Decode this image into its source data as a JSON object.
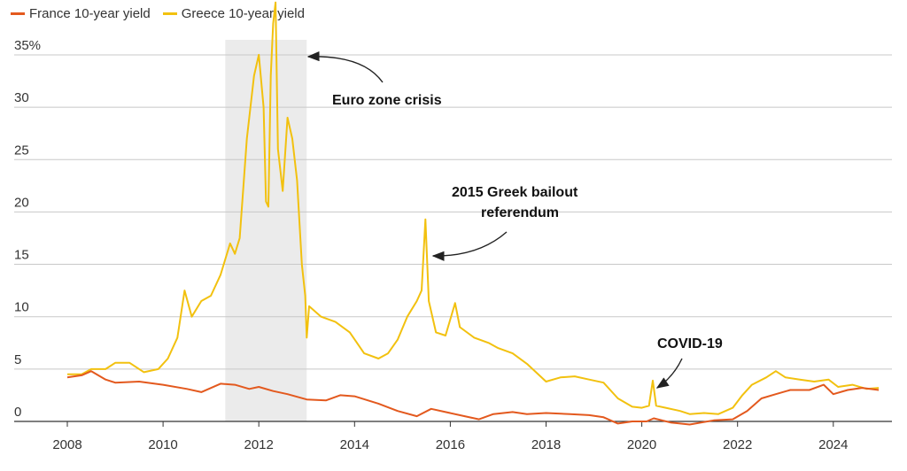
{
  "legend": [
    {
      "label": "France 10-year yield",
      "color": "#e3591e"
    },
    {
      "label": "Greece 10-year yield",
      "color": "#f2c10f"
    }
  ],
  "chart_data": {
    "type": "line",
    "title": "",
    "xlabel": "",
    "ylabel": "",
    "xlim": [
      2008,
      2025
    ],
    "ylim": [
      0,
      40
    ],
    "x_ticks": [
      2008,
      2010,
      2012,
      2014,
      2016,
      2018,
      2020,
      2022,
      2024
    ],
    "y_ticks": [
      {
        "value": 0,
        "label": "0"
      },
      {
        "value": 5,
        "label": "5"
      },
      {
        "value": 10,
        "label": "10"
      },
      {
        "value": 15,
        "label": "15"
      },
      {
        "value": 20,
        "label": "20"
      },
      {
        "value": 25,
        "label": "25"
      },
      {
        "value": 30,
        "label": "30"
      },
      {
        "value": 35,
        "label": "35%"
      }
    ],
    "grid": true,
    "shaded_region": {
      "x0": 2011.3,
      "x1": 2013.0,
      "color": "#ebebeb"
    },
    "series": [
      {
        "name": "Greece 10-year yield",
        "color": "#f2c10f",
        "points": [
          [
            2008.0,
            4.5
          ],
          [
            2008.3,
            4.5
          ],
          [
            2008.5,
            5.0
          ],
          [
            2008.8,
            5.0
          ],
          [
            2009.0,
            5.6
          ],
          [
            2009.3,
            5.6
          ],
          [
            2009.6,
            4.7
          ],
          [
            2009.9,
            5.0
          ],
          [
            2010.1,
            6.0
          ],
          [
            2010.3,
            8.0
          ],
          [
            2010.45,
            12.5
          ],
          [
            2010.6,
            10.0
          ],
          [
            2010.8,
            11.5
          ],
          [
            2011.0,
            12.0
          ],
          [
            2011.2,
            14.0
          ],
          [
            2011.4,
            17.0
          ],
          [
            2011.5,
            16.0
          ],
          [
            2011.6,
            17.5
          ],
          [
            2011.75,
            27.0
          ],
          [
            2011.9,
            33.0
          ],
          [
            2012.0,
            35.0
          ],
          [
            2012.1,
            30.0
          ],
          [
            2012.15,
            21.0
          ],
          [
            2012.2,
            20.5
          ],
          [
            2012.25,
            33.0
          ],
          [
            2012.3,
            38.0
          ],
          [
            2012.35,
            40.0
          ],
          [
            2012.4,
            26.0
          ],
          [
            2012.5,
            22.0
          ],
          [
            2012.6,
            29.0
          ],
          [
            2012.7,
            27.0
          ],
          [
            2012.8,
            23.0
          ],
          [
            2012.9,
            15.0
          ],
          [
            2012.97,
            12.0
          ],
          [
            2013.0,
            8.0
          ],
          [
            2013.05,
            11.0
          ],
          [
            2013.3,
            10.0
          ],
          [
            2013.6,
            9.5
          ],
          [
            2013.9,
            8.5
          ],
          [
            2014.2,
            6.5
          ],
          [
            2014.5,
            6.0
          ],
          [
            2014.7,
            6.5
          ],
          [
            2014.9,
            7.8
          ],
          [
            2015.1,
            10.0
          ],
          [
            2015.3,
            11.5
          ],
          [
            2015.4,
            12.5
          ],
          [
            2015.48,
            19.3
          ],
          [
            2015.55,
            11.5
          ],
          [
            2015.7,
            8.5
          ],
          [
            2015.9,
            8.2
          ],
          [
            2016.1,
            11.3
          ],
          [
            2016.2,
            9.0
          ],
          [
            2016.5,
            8.0
          ],
          [
            2016.8,
            7.5
          ],
          [
            2017.0,
            7.0
          ],
          [
            2017.3,
            6.5
          ],
          [
            2017.6,
            5.5
          ],
          [
            2018.0,
            3.8
          ],
          [
            2018.3,
            4.2
          ],
          [
            2018.6,
            4.3
          ],
          [
            2018.9,
            4.0
          ],
          [
            2019.2,
            3.7
          ],
          [
            2019.5,
            2.2
          ],
          [
            2019.8,
            1.4
          ],
          [
            2020.0,
            1.3
          ],
          [
            2020.15,
            1.5
          ],
          [
            2020.23,
            3.9
          ],
          [
            2020.3,
            1.5
          ],
          [
            2020.5,
            1.3
          ],
          [
            2020.8,
            1.0
          ],
          [
            2021.0,
            0.7
          ],
          [
            2021.3,
            0.8
          ],
          [
            2021.6,
            0.7
          ],
          [
            2021.9,
            1.3
          ],
          [
            2022.1,
            2.5
          ],
          [
            2022.3,
            3.5
          ],
          [
            2022.6,
            4.2
          ],
          [
            2022.8,
            4.8
          ],
          [
            2023.0,
            4.2
          ],
          [
            2023.3,
            4.0
          ],
          [
            2023.6,
            3.8
          ],
          [
            2023.9,
            4.0
          ],
          [
            2024.1,
            3.3
          ],
          [
            2024.4,
            3.5
          ],
          [
            2024.7,
            3.1
          ],
          [
            2024.95,
            3.2
          ]
        ]
      },
      {
        "name": "France 10-year yield",
        "color": "#e3591e",
        "points": [
          [
            2008.0,
            4.2
          ],
          [
            2008.3,
            4.4
          ],
          [
            2008.5,
            4.8
          ],
          [
            2008.8,
            4.0
          ],
          [
            2009.0,
            3.7
          ],
          [
            2009.5,
            3.8
          ],
          [
            2010.0,
            3.5
          ],
          [
            2010.5,
            3.1
          ],
          [
            2010.8,
            2.8
          ],
          [
            2011.2,
            3.6
          ],
          [
            2011.5,
            3.5
          ],
          [
            2011.8,
            3.1
          ],
          [
            2012.0,
            3.3
          ],
          [
            2012.3,
            2.9
          ],
          [
            2012.6,
            2.6
          ],
          [
            2013.0,
            2.1
          ],
          [
            2013.4,
            2.0
          ],
          [
            2013.7,
            2.5
          ],
          [
            2014.0,
            2.4
          ],
          [
            2014.5,
            1.7
          ],
          [
            2014.9,
            1.0
          ],
          [
            2015.3,
            0.5
          ],
          [
            2015.6,
            1.2
          ],
          [
            2015.9,
            0.9
          ],
          [
            2016.3,
            0.5
          ],
          [
            2016.6,
            0.2
          ],
          [
            2016.9,
            0.7
          ],
          [
            2017.3,
            0.9
          ],
          [
            2017.6,
            0.7
          ],
          [
            2018.0,
            0.8
          ],
          [
            2018.5,
            0.7
          ],
          [
            2018.9,
            0.6
          ],
          [
            2019.2,
            0.4
          ],
          [
            2019.5,
            -0.2
          ],
          [
            2019.8,
            0.0
          ],
          [
            2020.1,
            0.0
          ],
          [
            2020.25,
            0.3
          ],
          [
            2020.6,
            -0.1
          ],
          [
            2021.0,
            -0.3
          ],
          [
            2021.5,
            0.1
          ],
          [
            2021.9,
            0.2
          ],
          [
            2022.2,
            1.0
          ],
          [
            2022.5,
            2.2
          ],
          [
            2022.8,
            2.6
          ],
          [
            2023.1,
            3.0
          ],
          [
            2023.5,
            3.0
          ],
          [
            2023.8,
            3.5
          ],
          [
            2024.0,
            2.6
          ],
          [
            2024.3,
            3.0
          ],
          [
            2024.6,
            3.2
          ],
          [
            2024.95,
            3.0
          ]
        ]
      }
    ],
    "annotations": [
      {
        "lines": [
          "Euro zone crisis"
        ],
        "target": [
          2013.0,
          37.0
        ]
      },
      {
        "lines": [
          "2015 Greek bailout",
          "referendum"
        ],
        "target": [
          2015.5,
          15.0
        ]
      },
      {
        "lines": [
          "COVID-19"
        ],
        "target": [
          2020.25,
          2.0
        ]
      }
    ]
  }
}
